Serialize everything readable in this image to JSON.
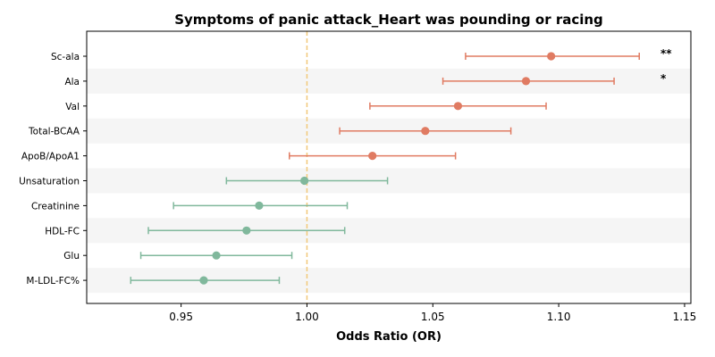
{
  "chart_data": {
    "type": "scatter",
    "title": "Symptoms of panic attack_Heart was pounding or racing",
    "xlabel": "Odds Ratio (OR)",
    "ylabel": "",
    "xlim": [
      0.9125,
      1.1525
    ],
    "xticks": [
      "0.95",
      "1.00",
      "1.05",
      "1.10",
      "1.15"
    ],
    "reference_line": 1.0,
    "colors": {
      "positive": "#e07b62",
      "negative": "#80b89c",
      "reference": "#f2c879",
      "stripe": "#f5f5f5"
    },
    "rows": [
      {
        "label": "Sc-ala",
        "or": 1.097,
        "lower": 1.063,
        "upper": 1.132,
        "sig": "**"
      },
      {
        "label": "Ala",
        "or": 1.087,
        "lower": 1.054,
        "upper": 1.122,
        "sig": "*"
      },
      {
        "label": "Val",
        "or": 1.06,
        "lower": 1.025,
        "upper": 1.095,
        "sig": ""
      },
      {
        "label": "Total-BCAA",
        "or": 1.047,
        "lower": 1.013,
        "upper": 1.081,
        "sig": ""
      },
      {
        "label": "ApoB/ApoA1",
        "or": 1.026,
        "lower": 0.993,
        "upper": 1.059,
        "sig": ""
      },
      {
        "label": "Unsaturation",
        "or": 0.999,
        "lower": 0.968,
        "upper": 1.032,
        "sig": ""
      },
      {
        "label": "Creatinine",
        "or": 0.981,
        "lower": 0.947,
        "upper": 1.016,
        "sig": ""
      },
      {
        "label": "HDL-FC",
        "or": 0.976,
        "lower": 0.937,
        "upper": 1.015,
        "sig": ""
      },
      {
        "label": "Glu",
        "or": 0.964,
        "lower": 0.934,
        "upper": 0.994,
        "sig": ""
      },
      {
        "label": "M-LDL-FC%",
        "or": 0.959,
        "lower": 0.93,
        "upper": 0.989,
        "sig": ""
      }
    ]
  }
}
